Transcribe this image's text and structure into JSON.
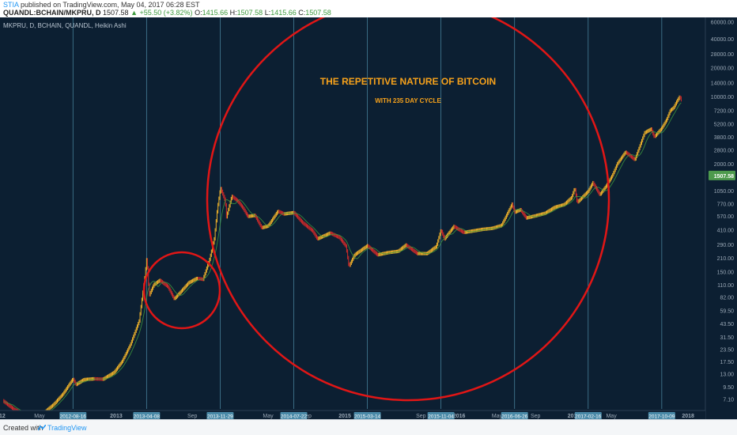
{
  "publish": {
    "user": "STIA",
    "text": "published on TradingView.com, May 04, 2017 06:28 EST"
  },
  "ohlc": {
    "symbol": "QUANDL:BCHAIN/MKPRU, D",
    "last": "1507.58",
    "change": "▲ +55.50 (+3.82%)",
    "open_label": "O:",
    "open": "1415.66",
    "high_label": "H:",
    "high": "1507.58",
    "low_label": "L:",
    "low": "1415.66",
    "close_label": "C:",
    "close": "1507.58"
  },
  "footer": {
    "created_with": "Created with",
    "brand": "TradingView"
  },
  "colors": {
    "background": "#0c1f32",
    "up_candle": "#f2b42a",
    "down_candle": "#d32a2a",
    "ma_line": "#3e9a3e",
    "circle": "#e01616",
    "cycle_line": "#5fa8c4",
    "annotation": "#f7a21b",
    "price_badge": "#4d9a4d"
  },
  "chart_data": {
    "type": "line",
    "style": "Heikin Ashi",
    "legend": "MKPRU, D, BCHAIN, QUANDL, Heikin Ashi",
    "title": "THE REPETITIVE NATURE OF BITCOIN",
    "subtitle": "WITH 235 DAY CYCLE",
    "y_scale": "log",
    "y_ticks": [
      "60000.00",
      "40000.00",
      "28000.00",
      "20000.00",
      "14000.00",
      "10000.00",
      "7200.00",
      "5200.00",
      "3800.00",
      "2800.00",
      "2000.00",
      "1050.00",
      "770.00",
      "570.00",
      "410.00",
      "290.00",
      "210.00",
      "150.00",
      "110.00",
      "82.00",
      "59.50",
      "43.50",
      "31.50",
      "23.50",
      "17.50",
      "13.00",
      "9.50",
      "7.10"
    ],
    "current_price": "1507.58",
    "x_ticks": [
      {
        "label": "'12",
        "x": "2012-01-01"
      },
      {
        "label": "May",
        "x": "2012-05-01"
      },
      {
        "label": "2013",
        "x": "2013-01-01"
      },
      {
        "label": "Sep",
        "x": "2013-09-01"
      },
      {
        "label": "May",
        "x": "2014-05-01"
      },
      {
        "label": "Sep",
        "x": "2014-09-01"
      },
      {
        "label": "2015",
        "x": "2015-01-01"
      },
      {
        "label": "Sep",
        "x": "2015-09-01"
      },
      {
        "label": "2016",
        "x": "2016-01-01"
      },
      {
        "label": "May",
        "x": "2016-05-01"
      },
      {
        "label": "Sep",
        "x": "2016-09-01"
      },
      {
        "label": "2017",
        "x": "2017-01-01"
      },
      {
        "label": "May",
        "x": "2017-05-01"
      },
      {
        "label": "2018",
        "x": "2018-01-01"
      }
    ],
    "cycle_dates": [
      "2012-08-16",
      "2013-04-08",
      "2013-11-29",
      "2014-07-22",
      "2015-03-14",
      "2015-11-04",
      "2016-06-26",
      "2017-02-16",
      "2017-10-09"
    ],
    "series": [
      {
        "points": [
          [
            "2012-01-05",
            6.8
          ],
          [
            "2012-02-10",
            5.5
          ],
          [
            "2012-03-15",
            4.9
          ],
          [
            "2012-04-15",
            5.0
          ],
          [
            "2012-05-15",
            5.1
          ],
          [
            "2012-06-15",
            6.2
          ],
          [
            "2012-07-15",
            8.0
          ],
          [
            "2012-08-16",
            11.5
          ],
          [
            "2012-08-25",
            10.0
          ],
          [
            "2012-09-20",
            11.3
          ],
          [
            "2012-10-20",
            11.5
          ],
          [
            "2012-11-20",
            11.4
          ],
          [
            "2012-12-25",
            13.4
          ],
          [
            "2013-01-20",
            17.5
          ],
          [
            "2013-02-15",
            26.0
          ],
          [
            "2013-03-15",
            46.0
          ],
          [
            "2013-04-02",
            130.0
          ],
          [
            "2013-04-09",
            215.0
          ],
          [
            "2013-04-16",
            85.0
          ],
          [
            "2013-05-01",
            110.0
          ],
          [
            "2013-05-20",
            122.0
          ],
          [
            "2013-06-15",
            105.0
          ],
          [
            "2013-07-05",
            78.0
          ],
          [
            "2013-07-25",
            92.0
          ],
          [
            "2013-08-20",
            115.0
          ],
          [
            "2013-09-15",
            128.0
          ],
          [
            "2013-10-05",
            125.0
          ],
          [
            "2013-10-25",
            195.0
          ],
          [
            "2013-11-10",
            330.0
          ],
          [
            "2013-11-20",
            680.0
          ],
          [
            "2013-11-30",
            1125.0
          ],
          [
            "2013-12-15",
            820.0
          ],
          [
            "2013-12-19",
            560.0
          ],
          [
            "2014-01-05",
            920.0
          ],
          [
            "2014-01-25",
            810.0
          ],
          [
            "2014-02-10",
            690.0
          ],
          [
            "2014-02-25",
            565.0
          ],
          [
            "2014-03-20",
            580.0
          ],
          [
            "2014-04-10",
            430.0
          ],
          [
            "2014-05-01",
            450.0
          ],
          [
            "2014-06-01",
            640.0
          ],
          [
            "2014-06-20",
            600.0
          ],
          [
            "2014-07-22",
            620.0
          ],
          [
            "2014-08-18",
            490.0
          ],
          [
            "2014-09-20",
            400.0
          ],
          [
            "2014-10-05",
            330.0
          ],
          [
            "2014-11-15",
            380.0
          ],
          [
            "2014-12-15",
            340.0
          ],
          [
            "2015-01-05",
            275.0
          ],
          [
            "2015-01-14",
            170.0
          ],
          [
            "2015-02-01",
            225.0
          ],
          [
            "2015-03-14",
            280.0
          ],
          [
            "2015-04-15",
            225.0
          ],
          [
            "2015-05-20",
            238.0
          ],
          [
            "2015-06-20",
            245.0
          ],
          [
            "2015-07-15",
            285.0
          ],
          [
            "2015-08-20",
            232.0
          ],
          [
            "2015-09-20",
            232.0
          ],
          [
            "2015-10-20",
            275.0
          ],
          [
            "2015-11-04",
            410.0
          ],
          [
            "2015-11-15",
            330.0
          ],
          [
            "2015-12-15",
            445.0
          ],
          [
            "2016-01-15",
            385.0
          ],
          [
            "2016-02-15",
            400.0
          ],
          [
            "2016-03-15",
            415.0
          ],
          [
            "2016-04-15",
            425.0
          ],
          [
            "2016-05-15",
            455.0
          ],
          [
            "2016-06-18",
            760.0
          ],
          [
            "2016-06-26",
            625.0
          ],
          [
            "2016-07-15",
            665.0
          ],
          [
            "2016-08-02",
            545.0
          ],
          [
            "2016-09-01",
            575.0
          ],
          [
            "2016-10-01",
            610.0
          ],
          [
            "2016-11-01",
            705.0
          ],
          [
            "2016-12-01",
            750.0
          ],
          [
            "2016-12-25",
            890.0
          ],
          [
            "2017-01-04",
            1120.0
          ],
          [
            "2017-01-12",
            790.0
          ],
          [
            "2017-02-16",
            1035.0
          ],
          [
            "2017-03-03",
            1270.0
          ],
          [
            "2017-03-25",
            950.0
          ],
          [
            "2017-04-15",
            1180.0
          ],
          [
            "2017-05-04",
            1507.58
          ],
          [
            "2017-05-20",
            2000.0
          ],
          [
            "2017-06-15",
            2650.0
          ],
          [
            "2017-07-15",
            2200.0
          ],
          [
            "2017-08-15",
            4200.0
          ],
          [
            "2017-09-05",
            4600.0
          ],
          [
            "2017-09-15",
            3800.0
          ],
          [
            "2017-10-09",
            4700.0
          ],
          [
            "2017-10-25",
            5800.0
          ],
          [
            "2017-11-05",
            7200.0
          ],
          [
            "2017-11-15",
            7600.0
          ],
          [
            "2017-11-25",
            8800.0
          ],
          [
            "2017-12-05",
            10000.0
          ],
          [
            "2017-12-12",
            9000.0
          ]
        ]
      }
    ],
    "annotations": [
      "small circle around 2013 cycle",
      "large circle around 2014–2017 cycle"
    ]
  }
}
